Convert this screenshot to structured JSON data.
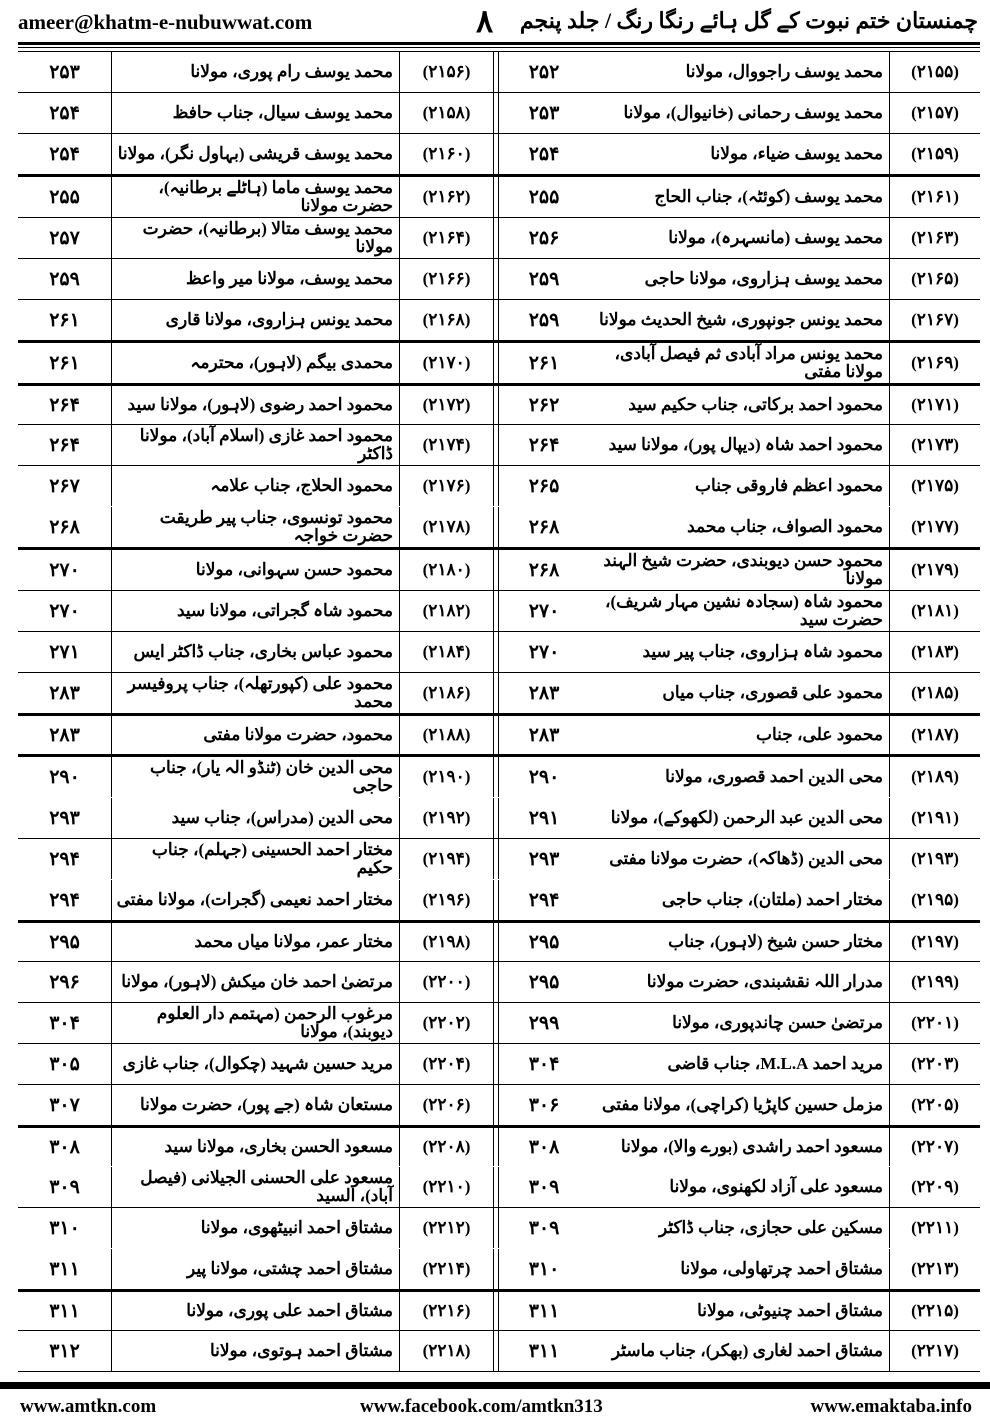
{
  "header": {
    "email": "ameer@khatm-e-nubuwwat.com",
    "page_number": "۸",
    "book_title": "چمنستان ختم نبوت کے گل ہائے رنگا رنگ / جلد پنجم"
  },
  "rows": [
    {
      "right": {
        "serial": "(۲۱۵۵)",
        "name": "محمد یوسف راجووال، مولانا",
        "page": "۲۵۲"
      },
      "left": {
        "serial": "(۲۱۵۶)",
        "name": "محمد یوسف رام پوری، مولانا",
        "page": "۲۵۳"
      }
    },
    {
      "right": {
        "serial": "(۲۱۵۷)",
        "name": "محمد یوسف رحمانی (خانیوال)، مولانا",
        "page": "۲۵۳"
      },
      "left": {
        "serial": "(۲۱۵۸)",
        "name": "محمد یوسف سیال، جناب حافظ",
        "page": "۲۵۴"
      }
    },
    {
      "right": {
        "serial": "(۲۱۵۹)",
        "name": "محمد یوسف ضیاء، مولانا",
        "page": "۲۵۴"
      },
      "left": {
        "serial": "(۲۱۶۰)",
        "name": "محمد یوسف قریشی (بہاول نگر)، مولانا",
        "page": "۲۵۴"
      }
    },
    {
      "right": {
        "serial": "(۲۱۶۱)",
        "name": "محمد یوسف (کوئٹہ)، جناب الحاج",
        "page": "۲۵۵"
      },
      "left": {
        "serial": "(۲۱۶۲)",
        "name": "محمد یوسف ماما (ہاٹلے برطانیہ)، حضرت مولانا",
        "page": "۲۵۵"
      }
    },
    {
      "right": {
        "serial": "(۲۱۶۳)",
        "name": "محمد یوسف (مانسہرہ)، مولانا",
        "page": "۲۵۶"
      },
      "left": {
        "serial": "(۲۱۶۴)",
        "name": "محمد یوسف متالا (برطانیہ)، حضرت مولانا",
        "page": "۲۵۷"
      }
    },
    {
      "right": {
        "serial": "(۲۱۶۵)",
        "name": "محمد یوسف ہزاروی، مولانا حاجی",
        "page": "۲۵۹"
      },
      "left": {
        "serial": "(۲۱۶۶)",
        "name": "محمد یوسف، مولانا میر واعظ",
        "page": "۲۵۹"
      }
    },
    {
      "right": {
        "serial": "(۲۱۶۷)",
        "name": "محمد یونس جونپوری، شیخ الحدیث مولانا",
        "page": "۲۵۹"
      },
      "left": {
        "serial": "(۲۱۶۸)",
        "name": "محمد یونس ہزاروی، مولانا قاری",
        "page": "۲۶۱"
      }
    },
    {
      "right": {
        "serial": "(۲۱۶۹)",
        "name": "محمد یونس مراد آبادی ثم فیصل آبادی، مولانا مفتی",
        "page": "۲۶۱"
      },
      "left": {
        "serial": "(۲۱۷۰)",
        "name": "محمدی بیگم (لاہور)، محترمہ",
        "page": "۲۶۱"
      }
    },
    {
      "right": {
        "serial": "(۲۱۷۱)",
        "name": "محمود احمد برکاتی، جناب حکیم سید",
        "page": "۲۶۲"
      },
      "left": {
        "serial": "(۲۱۷۲)",
        "name": "محمود احمد رضوی (لاہور)، مولانا سید",
        "page": "۲۶۴"
      }
    },
    {
      "right": {
        "serial": "(۲۱۷۳)",
        "name": "محمود احمد شاہ (دیپال پور)، مولانا سید",
        "page": "۲۶۴"
      },
      "left": {
        "serial": "(۲۱۷۴)",
        "name": "محمود احمد غازی (اسلام آباد)، مولانا ڈاکٹر",
        "page": "۲۶۴"
      }
    },
    {
      "right": {
        "serial": "(۲۱۷۵)",
        "name": "محمود اعظم فاروقی جناب",
        "page": "۲۶۵"
      },
      "left": {
        "serial": "(۲۱۷۶)",
        "name": "محمود الحلاج، جناب علامہ",
        "page": "۲۶۷"
      }
    },
    {
      "right": {
        "serial": "(۲۱۷۷)",
        "name": "محمود الصواف، جناب محمد",
        "page": "۲۶۸"
      },
      "left": {
        "serial": "(۲۱۷۸)",
        "name": "محمود تونسوی، جناب پیر طریقت حضرت خواجہ",
        "page": "۲۶۸"
      }
    },
    {
      "right": {
        "serial": "(۲۱۷۹)",
        "name": "محمود حسن دیوبندی، حضرت شیخ الہند مولانا",
        "page": "۲۶۸"
      },
      "left": {
        "serial": "(۲۱۸۰)",
        "name": "محمود حسن سہوانی، مولانا",
        "page": "۲۷۰"
      }
    },
    {
      "right": {
        "serial": "(۲۱۸۱)",
        "name": "محمود شاہ (سجادہ نشین مہار شریف)، حضرت سید",
        "page": "۲۷۰"
      },
      "left": {
        "serial": "(۲۱۸۲)",
        "name": "محمود شاہ گجراتی، مولانا سید",
        "page": "۲۷۰"
      }
    },
    {
      "right": {
        "serial": "(۲۱۸۳)",
        "name": "محمود شاہ ہزاروی، جناب پیر سید",
        "page": "۲۷۰"
      },
      "left": {
        "serial": "(۲۱۸۴)",
        "name": "محمود عباس بخاری، جناب ڈاکٹر ایس",
        "page": "۲۷۱"
      }
    },
    {
      "right": {
        "serial": "(۲۱۸۵)",
        "name": "محمود علی قصوری، جناب میاں",
        "page": "۲۸۳"
      },
      "left": {
        "serial": "(۲۱۸۶)",
        "name": "محمود علی (کپورتھلہ)، جناب پروفیسر محمد",
        "page": "۲۸۳"
      }
    },
    {
      "right": {
        "serial": "(۲۱۸۷)",
        "name": "محمود علی، جناب",
        "page": "۲۸۳"
      },
      "left": {
        "serial": "(۲۱۸۸)",
        "name": "محمود، حضرت مولانا مفتی",
        "page": "۲۸۳"
      }
    },
    {
      "right": {
        "serial": "(۲۱۸۹)",
        "name": "محی الدین احمد قصوری، مولانا",
        "page": "۲۹۰"
      },
      "left": {
        "serial": "(۲۱۹۰)",
        "name": "محی الدین خان (ٹنڈو الہ یار)، جناب حاجی",
        "page": "۲۹۰"
      }
    },
    {
      "right": {
        "serial": "(۲۱۹۱)",
        "name": "محی الدین عبد الرحمن (لکھوکے)، مولانا",
        "page": "۲۹۱"
      },
      "left": {
        "serial": "(۲۱۹۲)",
        "name": "محی الدین (مدراس)، جناب سید",
        "page": "۲۹۳"
      }
    },
    {
      "right": {
        "serial": "(۲۱۹۳)",
        "name": "محی الدین (ڈھاکہ)، حضرت مولانا مفتی",
        "page": "۲۹۳"
      },
      "left": {
        "serial": "(۲۱۹۴)",
        "name": "مختار احمد الحسینی (جہلم)، جناب حکیم",
        "page": "۲۹۴"
      }
    },
    {
      "right": {
        "serial": "(۲۱۹۵)",
        "name": "مختار احمد (ملتان)، جناب حاجی",
        "page": "۲۹۴"
      },
      "left": {
        "serial": "(۲۱۹۶)",
        "name": "مختار احمد نعیمی (گجرات)، مولانا مفتی",
        "page": "۲۹۴"
      }
    },
    {
      "right": {
        "serial": "(۲۱۹۷)",
        "name": "مختار حسن شیخ (لاہور)، جناب",
        "page": "۲۹۵"
      },
      "left": {
        "serial": "(۲۱۹۸)",
        "name": "مختار عمر، مولانا میاں محمد",
        "page": "۲۹۵"
      }
    },
    {
      "right": {
        "serial": "(۲۱۹۹)",
        "name": "مدرار اللہ نقشبندی، حضرت مولانا",
        "page": "۲۹۵"
      },
      "left": {
        "serial": "(۲۲۰۰)",
        "name": "مرتضیٰ احمد خان میکش (لاہور)، مولانا",
        "page": "۲۹۶"
      }
    },
    {
      "right": {
        "serial": "(۲۲۰۱)",
        "name": "مرتضیٰ حسن چاندپوری، مولانا",
        "page": "۲۹۹"
      },
      "left": {
        "serial": "(۲۲۰۲)",
        "name": "مرغوب الرحمن (مہتمم دار العلوم دیوبند)، مولانا",
        "page": "۳۰۴"
      }
    },
    {
      "right": {
        "serial": "(۲۲۰۳)",
        "name": "مرید احمد M.L.A، جناب قاضی",
        "page": "۳۰۴"
      },
      "left": {
        "serial": "(۲۲۰۴)",
        "name": "مرید حسین شہید (چکوال)، جناب غازی",
        "page": "۳۰۵"
      }
    },
    {
      "right": {
        "serial": "(۲۲۰۵)",
        "name": "مزمل حسین کاپڑیا (کراچی)، مولانا مفتی",
        "page": "۳۰۶"
      },
      "left": {
        "serial": "(۲۲۰۶)",
        "name": "مستعان شاہ (جے پور)، حضرت مولانا",
        "page": "۳۰۷"
      }
    },
    {
      "right": {
        "serial": "(۲۲۰۷)",
        "name": "مسعود احمد راشدی (بورے والا)، مولانا",
        "page": "۳۰۸"
      },
      "left": {
        "serial": "(۲۲۰۸)",
        "name": "مسعود الحسن بخاری، مولانا سید",
        "page": "۳۰۸"
      }
    },
    {
      "right": {
        "serial": "(۲۲۰۹)",
        "name": "مسعود علی آزاد لکھنوی، مولانا",
        "page": "۳۰۹"
      },
      "left": {
        "serial": "(۲۲۱۰)",
        "name": "مسعود علی الحسنی الجیلانی (فیصل آباد)، السید",
        "page": "۳۰۹"
      }
    },
    {
      "right": {
        "serial": "(۲۲۱۱)",
        "name": "مسکین علی حجازی، جناب ڈاکٹر",
        "page": "۳۰۹"
      },
      "left": {
        "serial": "(۲۲۱۲)",
        "name": "مشتاق احمد انبیٹھوی، مولانا",
        "page": "۳۱۰"
      }
    },
    {
      "right": {
        "serial": "(۲۲۱۳)",
        "name": "مشتاق احمد چرتھاولی، مولانا",
        "page": "۳۱۰"
      },
      "left": {
        "serial": "(۲۲۱۴)",
        "name": "مشتاق احمد چشتی، مولانا پیر",
        "page": "۳۱۱"
      }
    },
    {
      "right": {
        "serial": "(۲۲۱۵)",
        "name": "مشتاق احمد چنیوٹی، مولانا",
        "page": "۳۱۱"
      },
      "left": {
        "serial": "(۲۲۱۶)",
        "name": "مشتاق احمد علی پوری، مولانا",
        "page": "۳۱۱"
      }
    },
    {
      "right": {
        "serial": "(۲۲۱۷)",
        "name": "مشتاق احمد لغاری (بھکر)، جناب ماسٹر",
        "page": "۳۱۱"
      },
      "left": {
        "serial": "(۲۲۱۸)",
        "name": "مشتاق احمد ہوتوی، مولانا",
        "page": "۳۱۲"
      }
    }
  ],
  "footer": {
    "left": "www.amtkn.com",
    "center": "www.facebook.com/amtkn313",
    "right": "www.emaktaba.info"
  }
}
